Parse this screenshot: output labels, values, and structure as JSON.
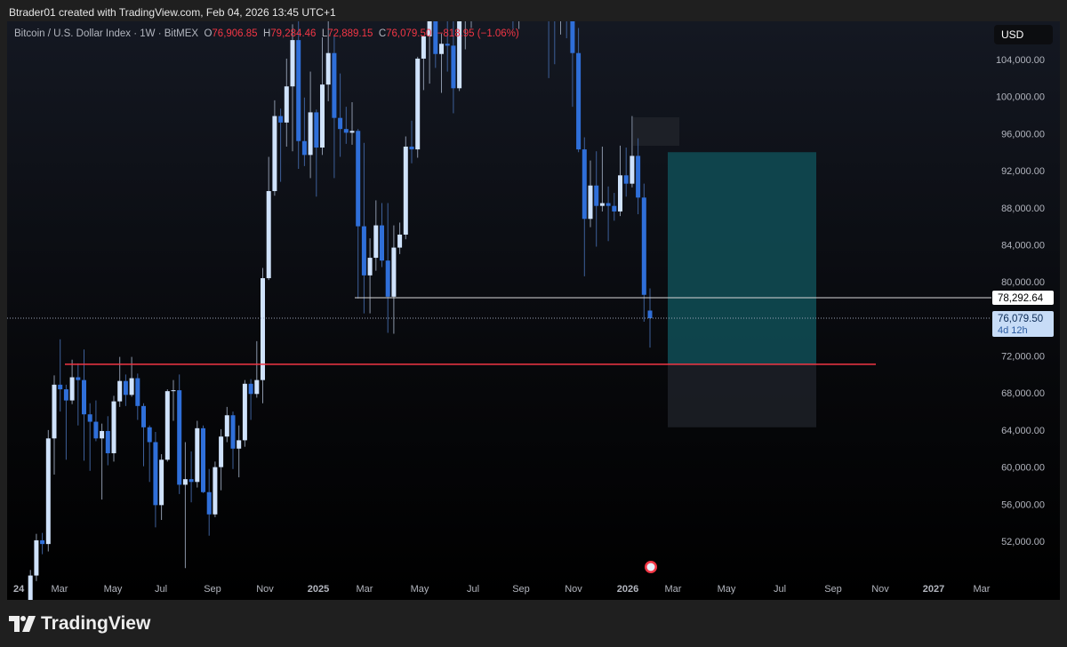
{
  "credit": "Btrader01 created with TradingView.com, Feb 04, 2026 13:45 UTC+1",
  "legend": {
    "symbol": "Bitcoin / U.S. Dollar Index · 1W · BitMEX",
    "o_label": "O",
    "o": "76,906.85",
    "h_label": "H",
    "h": "79,284.46",
    "l_label": "L",
    "l": "72,889.15",
    "c_label": "C",
    "c": "76,079.50",
    "change": "−818.95 (−1.06%)"
  },
  "currency": "USD",
  "brand": "TradingView",
  "colors": {
    "up": "#cfe2fb",
    "down": "#2f6fd9",
    "support_line": "#f23645",
    "target_zone": "#0f4a52",
    "stop_zone": "#1c1f26",
    "level_line": "#d9d9d9"
  },
  "chart_data": {
    "type": "candlestick",
    "interval": "1W",
    "start_week": "2024-02-05",
    "ohlc": [
      [
        42.6,
        48.9,
        42.5,
        48.3
      ],
      [
        48.3,
        52.8,
        47.7,
        52.1
      ],
      [
        52.1,
        52.9,
        50.6,
        51.7
      ],
      [
        51.7,
        64.0,
        50.9,
        63.1
      ],
      [
        63.1,
        69.9,
        59.2,
        68.9
      ],
      [
        68.9,
        73.8,
        66.0,
        68.4
      ],
      [
        68.4,
        68.9,
        60.8,
        67.2
      ],
      [
        67.2,
        71.6,
        66.8,
        69.7
      ],
      [
        69.7,
        71.2,
        64.5,
        69.4
      ],
      [
        69.4,
        72.7,
        60.7,
        65.7
      ],
      [
        65.7,
        66.9,
        59.6,
        64.9
      ],
      [
        64.9,
        67.2,
        62.8,
        63.1
      ],
      [
        63.1,
        64.7,
        56.5,
        63.9
      ],
      [
        63.9,
        65.5,
        60.2,
        61.5
      ],
      [
        61.5,
        67.7,
        60.6,
        67.1
      ],
      [
        67.1,
        71.9,
        66.5,
        69.3
      ],
      [
        69.3,
        70.0,
        66.6,
        67.8
      ],
      [
        67.8,
        71.9,
        67.6,
        69.6
      ],
      [
        69.6,
        70.1,
        65.1,
        66.6
      ],
      [
        66.6,
        66.9,
        60.1,
        64.3
      ],
      [
        64.3,
        64.5,
        58.4,
        62.7
      ],
      [
        62.7,
        63.8,
        53.5,
        55.9
      ],
      [
        55.9,
        61.4,
        54.3,
        60.8
      ],
      [
        60.8,
        68.4,
        60.6,
        68.2
      ],
      [
        68.2,
        69.4,
        65.0,
        68.3
      ],
      [
        68.3,
        70.0,
        57.1,
        58.1
      ],
      [
        58.1,
        62.7,
        49.1,
        58.7
      ],
      [
        58.7,
        61.7,
        56.2,
        58.4
      ],
      [
        58.4,
        65.0,
        57.8,
        64.2
      ],
      [
        64.2,
        64.5,
        57.2,
        57.3
      ],
      [
        57.3,
        59.8,
        52.6,
        54.9
      ],
      [
        54.9,
        60.6,
        54.6,
        60.0
      ],
      [
        60.0,
        64.1,
        57.5,
        63.3
      ],
      [
        63.3,
        66.5,
        62.7,
        65.6
      ],
      [
        65.6,
        66.0,
        59.8,
        62.0
      ],
      [
        62.0,
        64.5,
        58.9,
        62.9
      ],
      [
        62.9,
        69.4,
        62.2,
        69.0
      ],
      [
        69.0,
        69.5,
        65.1,
        67.9
      ],
      [
        67.9,
        73.6,
        67.5,
        69.4
      ],
      [
        69.4,
        81.5,
        66.9,
        80.4
      ],
      [
        80.4,
        93.5,
        80.2,
        89.8
      ],
      [
        89.8,
        99.6,
        89.3,
        97.9
      ],
      [
        97.9,
        98.7,
        90.8,
        97.2
      ],
      [
        97.2,
        104.1,
        94.6,
        101.1
      ],
      [
        101.1,
        107.8,
        94.1,
        106.1
      ],
      [
        106.1,
        108.4,
        92.2,
        95.2
      ],
      [
        95.2,
        99.9,
        92.5,
        93.7
      ],
      [
        93.7,
        102.7,
        91.2,
        98.3
      ],
      [
        98.3,
        98.6,
        89.2,
        94.5
      ],
      [
        94.5,
        106.4,
        93.7,
        101.3
      ],
      [
        101.3,
        109.6,
        99.5,
        104.7
      ],
      [
        104.7,
        106.5,
        91.2,
        97.7
      ],
      [
        97.7,
        102.5,
        93.5,
        96.5
      ],
      [
        96.5,
        98.9,
        94.9,
        96.1
      ],
      [
        96.1,
        99.4,
        94.8,
        96.3
      ],
      [
        96.3,
        96.5,
        78.2,
        86.0
      ],
      [
        86.0,
        95.0,
        76.6,
        80.7
      ],
      [
        80.7,
        84.7,
        76.6,
        82.6
      ],
      [
        82.6,
        88.8,
        81.2,
        86.1
      ],
      [
        86.1,
        88.5,
        81.6,
        82.3
      ],
      [
        82.3,
        88.5,
        74.5,
        78.4
      ],
      [
        78.4,
        86.1,
        74.4,
        83.7
      ],
      [
        83.7,
        86.4,
        83.0,
        85.1
      ],
      [
        85.1,
        95.7,
        84.6,
        94.6
      ],
      [
        94.6,
        97.4,
        92.8,
        94.3
      ],
      [
        94.3,
        104.3,
        93.4,
        104.1
      ],
      [
        104.1,
        105.8,
        100.7,
        106.5
      ],
      [
        106.5,
        112.0,
        101.4,
        109.0
      ],
      [
        109.0,
        110.7,
        103.1,
        104.6
      ],
      [
        104.6,
        106.8,
        100.4,
        105.7
      ],
      [
        105.7,
        110.4,
        102.7,
        105.5
      ],
      [
        105.5,
        108.9,
        98.2,
        100.9
      ],
      [
        100.9,
        108.5,
        100.6,
        108.3
      ],
      [
        108.3,
        110.5,
        105.1,
        109.2
      ],
      [
        109.2,
        123.2,
        107.4,
        119.1
      ],
      [
        119.1,
        123.2,
        115.7,
        117.3
      ],
      [
        117.3,
        120.2,
        114.7,
        119.4
      ],
      [
        119.4,
        119.8,
        112.0,
        114.2
      ],
      [
        114.2,
        122.3,
        112.7,
        119.3
      ],
      [
        119.3,
        124.5,
        116.8,
        117.4
      ],
      [
        117.4,
        117.6,
        110.7,
        113.5
      ],
      [
        113.5,
        113.6,
        107.3,
        108.2
      ],
      [
        108.2,
        113.3,
        107.3,
        111.1
      ],
      [
        111.1,
        116.8,
        110.6,
        115.3
      ],
      [
        115.3,
        117.9,
        114.7,
        115.2
      ],
      [
        115.2,
        115.6,
        108.7,
        112.2
      ],
      [
        112.2,
        125.7,
        111.6,
        123.5
      ],
      [
        123.5,
        126.3,
        102.0,
        114.9
      ],
      [
        114.9,
        115.9,
        103.5,
        108.6
      ],
      [
        108.6,
        116.0,
        106.7,
        114.5
      ],
      [
        114.5,
        116.4,
        106.3,
        110.1
      ],
      [
        110.1,
        110.2,
        98.9,
        104.7
      ],
      [
        104.7,
        107.4,
        94.0,
        94.3
      ],
      [
        94.3,
        95.6,
        80.6,
        86.8
      ],
      [
        86.8,
        93.1,
        85.9,
        90.4
      ],
      [
        90.4,
        94.1,
        83.8,
        88.2
      ],
      [
        88.2,
        94.6,
        87.6,
        88.5
      ],
      [
        88.5,
        90.3,
        84.4,
        88.2
      ],
      [
        88.2,
        89.6,
        86.6,
        87.6
      ],
      [
        87.6,
        94.7,
        87.1,
        91.5
      ],
      [
        91.5,
        94.5,
        89.2,
        90.6
      ],
      [
        90.6,
        97.9,
        90.2,
        93.6
      ],
      [
        93.6,
        95.5,
        87.3,
        89.1
      ],
      [
        89.1,
        90.6,
        75.7,
        78.6
      ],
      [
        76.9,
        79.3,
        72.9,
        76.08
      ]
    ],
    "price_unit": "thousand USD",
    "y_ticks": [
      "104,000.00",
      "100,000.00",
      "96,000.00",
      "92,000.00",
      "88,000.00",
      "84,000.00",
      "80,000.00",
      "72,000.00",
      "68,000.00",
      "64,000.00",
      "60,000.00",
      "56,000.00",
      "52,000.00"
    ],
    "x_ticks": [
      "24",
      "Mar",
      "May",
      "Jul",
      "Sep",
      "Nov",
      "2025",
      "Mar",
      "May",
      "Jul",
      "Sep",
      "Nov",
      "2026",
      "Mar",
      "May",
      "Jul",
      "Sep",
      "Nov",
      "2027",
      "Mar"
    ],
    "levels": {
      "horizontal_line": "78,292.64",
      "current_price": "76,079.50",
      "countdown": "4d 12h",
      "support": 71100
    },
    "position": {
      "entry": 71100,
      "target": 94000,
      "stop": 64300
    },
    "grid": false,
    "event_marker": "us-flag"
  }
}
